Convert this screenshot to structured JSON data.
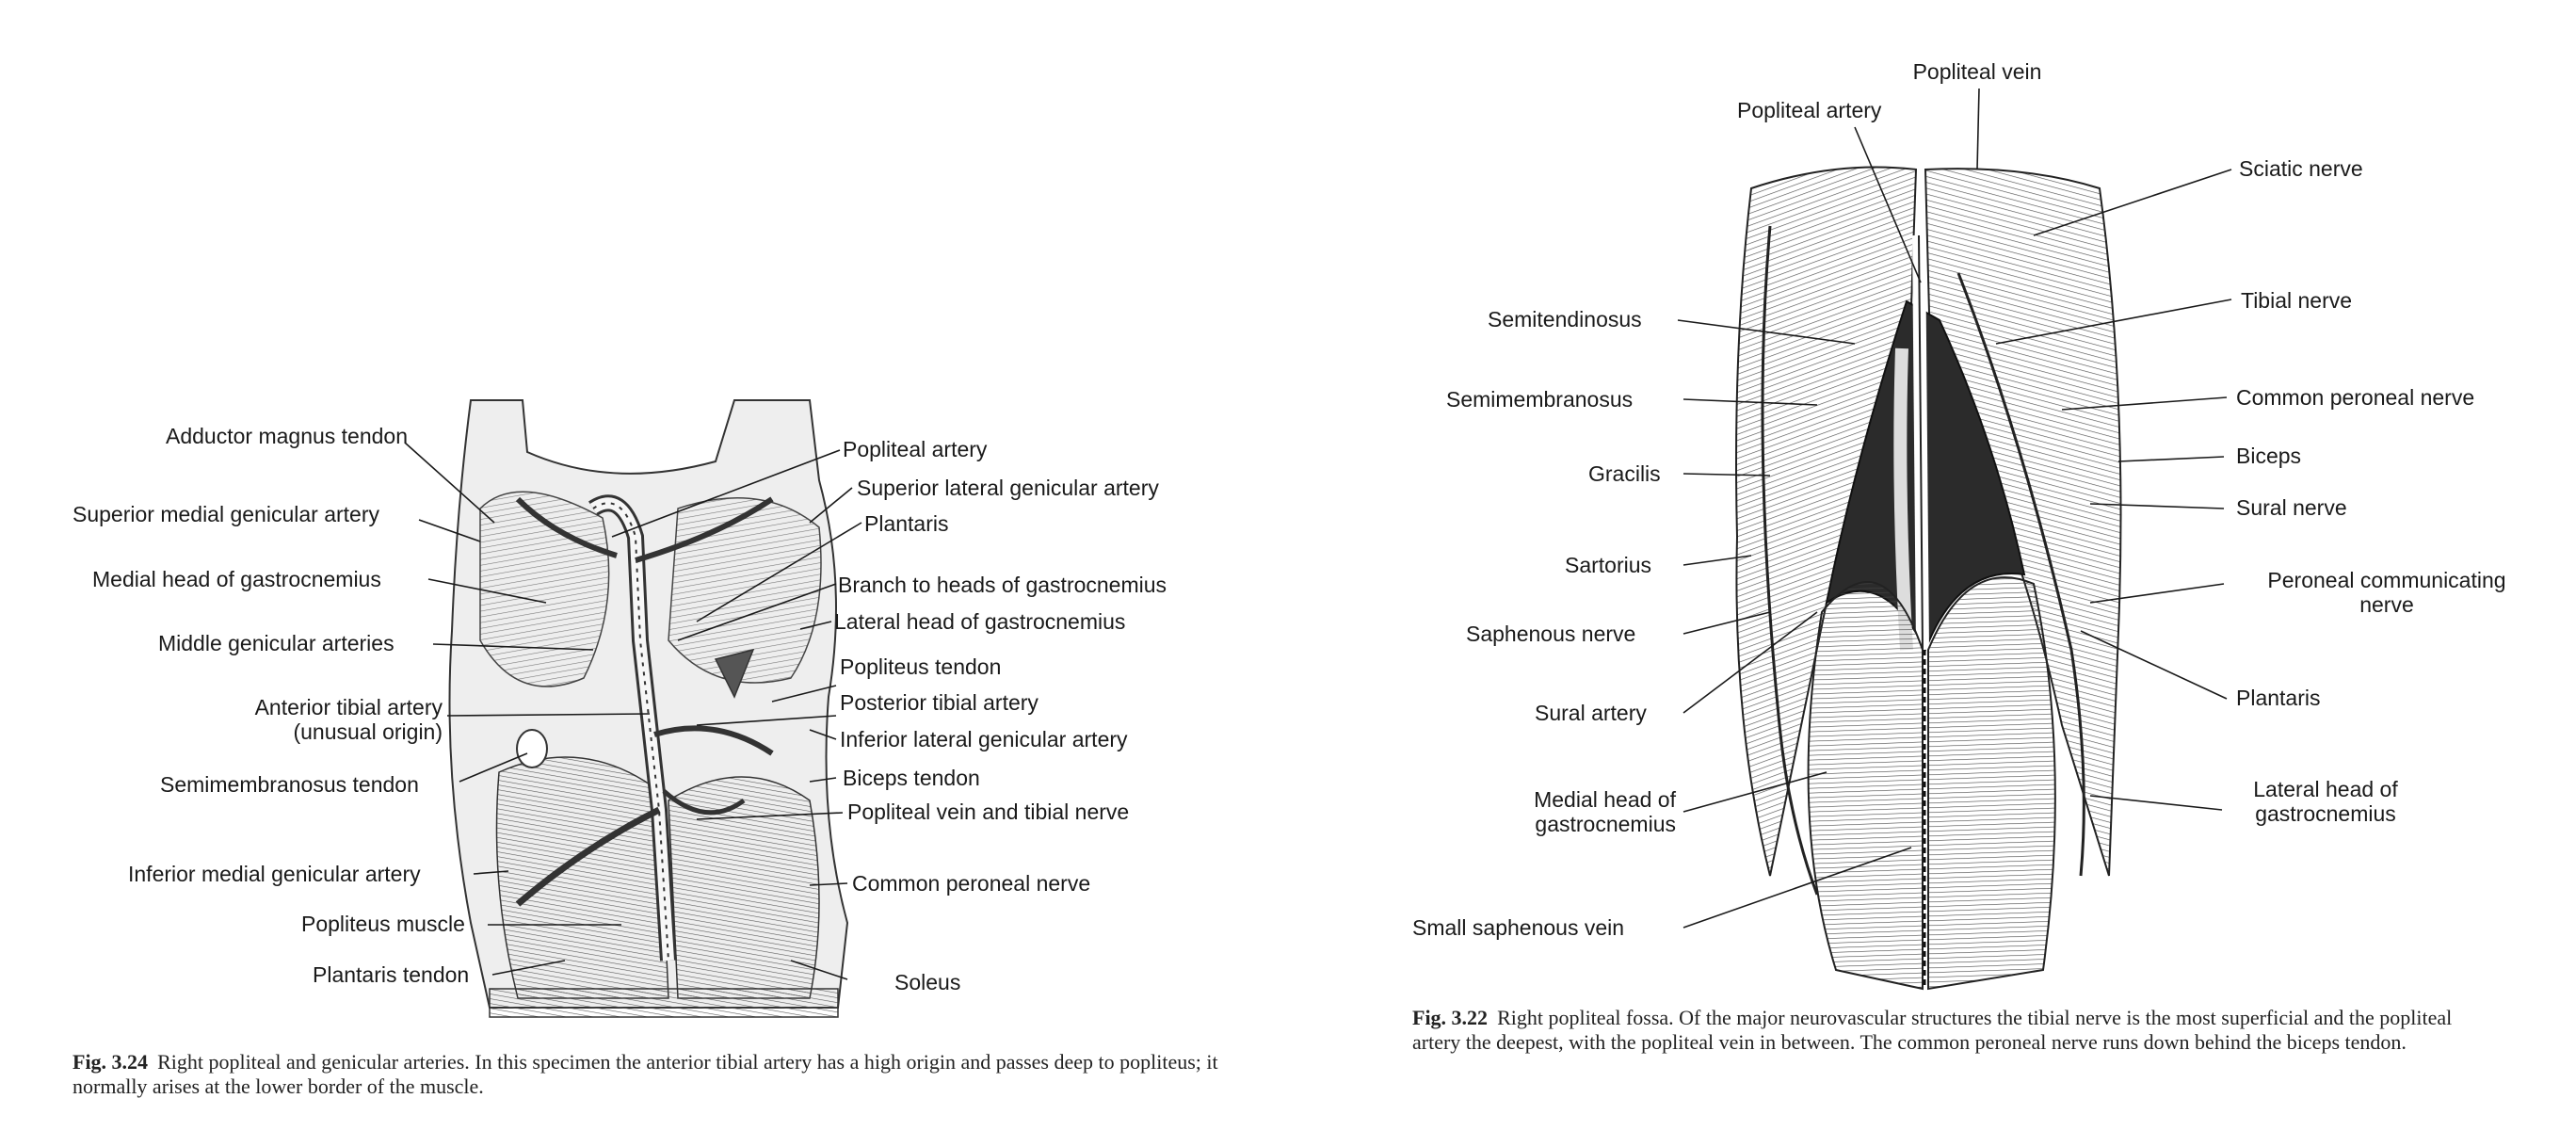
{
  "figure_left": {
    "labels": {
      "adductor_magnus_tendon": "Adductor magnus tendon",
      "superior_medial_genicular_artery": "Superior medial genicular artery",
      "medial_head_gastrocnemius": "Medial head of gastrocnemius",
      "middle_genicular_arteries": "Middle genicular arteries",
      "anterior_tibial_artery_1": "Anterior tibial artery",
      "anterior_tibial_artery_2": "(unusual origin)",
      "semimembranosus_tendon": "Semimembranosus tendon",
      "inferior_medial_genicular_artery": "Inferior medial genicular artery",
      "popliteus_muscle": "Popliteus muscle",
      "plantaris_tendon": "Plantaris tendon",
      "popliteal_artery": "Popliteal artery",
      "superior_lateral_genicular_artery": "Superior lateral genicular artery",
      "plantaris": "Plantaris",
      "branch_heads_gastrocnemius": "Branch to heads of gastrocnemius",
      "lateral_head_gastrocnemius": "Lateral head of gastrocnemius",
      "popliteus_tendon": "Popliteus tendon",
      "posterior_tibial_artery": "Posterior tibial artery",
      "inferior_lateral_genicular_artery": "Inferior lateral genicular artery",
      "biceps_tendon": "Biceps tendon",
      "popliteal_vein_tibial_nerve": "Popliteal vein and tibial nerve",
      "common_peroneal_nerve": "Common peroneal nerve",
      "soleus": "Soleus"
    },
    "caption_num": "Fig. 3.24",
    "caption_text": "Right popliteal and genicular arteries. In this specimen the anterior tibial artery has a high origin and passes deep to popliteus; it normally arises at the lower border of the muscle."
  },
  "figure_right": {
    "labels": {
      "popliteal_vein": "Popliteal vein",
      "popliteal_artery": "Popliteal artery",
      "sciatic_nerve": "Sciatic nerve",
      "semitendinosus": "Semitendinosus",
      "tibial_nerve": "Tibial nerve",
      "semimembranosus": "Semimembranosus",
      "common_peroneal_nerve": "Common peroneal nerve",
      "biceps": "Biceps",
      "gracilis": "Gracilis",
      "sural_nerve": "Sural nerve",
      "sartorius": "Sartorius",
      "peroneal_communicating_1": "Peroneal communicating",
      "peroneal_communicating_2": "nerve",
      "saphenous_nerve": "Saphenous nerve",
      "plantaris": "Plantaris",
      "sural_artery": "Sural artery",
      "medial_head_1": "Medial head of",
      "medial_head_2": "gastrocnemius",
      "lateral_head_1": "Lateral head of",
      "lateral_head_2": "gastrocnemius",
      "small_saphenous_vein": "Small saphenous vein"
    },
    "caption_num": "Fig. 3.22",
    "caption_text": "Right popliteal fossa. Of the major neurovascular structures the tibial nerve is the most superficial and the popliteal artery the deepest, with the popliteal vein in between. The common peroneal nerve runs down behind the biceps tendon."
  }
}
